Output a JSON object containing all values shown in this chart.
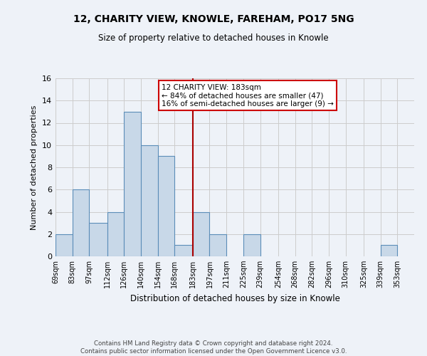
{
  "title": "12, CHARITY VIEW, KNOWLE, FAREHAM, PO17 5NG",
  "subtitle": "Size of property relative to detached houses in Knowle",
  "xlabel": "Distribution of detached houses by size in Knowle",
  "ylabel": "Number of detached properties",
  "bin_labels": [
    "69sqm",
    "83sqm",
    "97sqm",
    "112sqm",
    "126sqm",
    "140sqm",
    "154sqm",
    "168sqm",
    "183sqm",
    "197sqm",
    "211sqm",
    "225sqm",
    "239sqm",
    "254sqm",
    "268sqm",
    "282sqm",
    "296sqm",
    "310sqm",
    "325sqm",
    "339sqm",
    "353sqm"
  ],
  "bin_edges": [
    69,
    83,
    97,
    112,
    126,
    140,
    154,
    168,
    183,
    197,
    211,
    225,
    239,
    254,
    268,
    282,
    296,
    310,
    325,
    339,
    353,
    367
  ],
  "counts": [
    2,
    6,
    3,
    4,
    13,
    10,
    9,
    1,
    4,
    2,
    0,
    2,
    0,
    0,
    0,
    0,
    0,
    0,
    0,
    1,
    0
  ],
  "bar_color": "#c8d8e8",
  "bar_edge_color": "#5b8db8",
  "vline_x": 183,
  "vline_color": "#aa0000",
  "annotation_line1": "12 CHARITY VIEW: 183sqm",
  "annotation_line2": "← 84% of detached houses are smaller (47)",
  "annotation_line3": "16% of semi-detached houses are larger (9) →",
  "annotation_box_color": "#ffffff",
  "annotation_box_edge": "#cc0000",
  "ylim": [
    0,
    16
  ],
  "yticks": [
    0,
    2,
    4,
    6,
    8,
    10,
    12,
    14,
    16
  ],
  "grid_color": "#cccccc",
  "bg_color": "#eef2f8",
  "footer_line1": "Contains HM Land Registry data © Crown copyright and database right 2024.",
  "footer_line2": "Contains public sector information licensed under the Open Government Licence v3.0."
}
